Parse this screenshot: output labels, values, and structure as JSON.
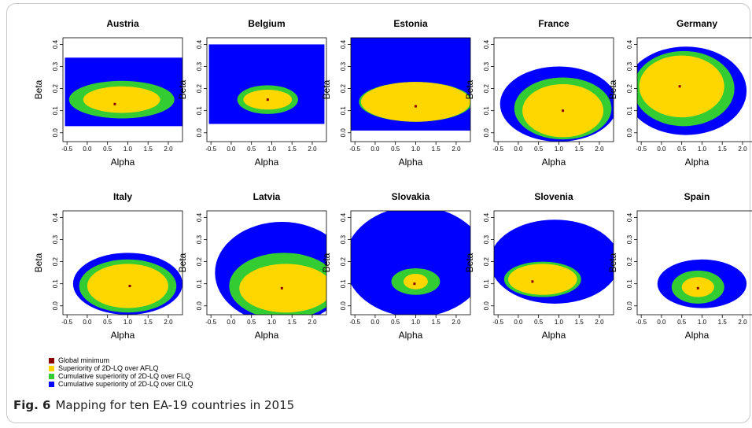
{
  "colors": {
    "global_minimum": "#8B0000",
    "afl": "#FFD700",
    "flq": "#33CC33",
    "cilq": "#0000FF"
  },
  "caption": {
    "fig_label": "Fig. 6",
    "text": "Mapping for ten EA-19 countries in 2015"
  },
  "legend": [
    {
      "label": "Global minimum",
      "color": "#8B0000"
    },
    {
      "label": "Superiority of 2D-LQ over AFLQ",
      "color": "#FFD700"
    },
    {
      "label": "Cumulative superiority of 2D-LQ over FLQ",
      "color": "#33CC33"
    },
    {
      "label": "Cumulative superiority of 2D-LQ over CILQ",
      "color": "#0000FF"
    }
  ],
  "chart_data": [
    {
      "type": "heatmap",
      "title": "Austria",
      "xlabel": "Alpha",
      "ylabel": "Beta",
      "xlim": [
        -0.6,
        2.35
      ],
      "ylim": [
        -0.04,
        0.43
      ],
      "x_ticks": [
        "-0.5",
        "0.0",
        "0.5",
        "1.0",
        "1.5",
        "2.0"
      ],
      "y_ticks": [
        "0.0",
        "0.1",
        "0.2",
        "0.3",
        "0.4"
      ],
      "global_minimum": {
        "alpha": 0.68,
        "beta": 0.13
      },
      "regions": {
        "cilq": {
          "alpha": [
            -0.55,
            2.35
          ],
          "beta": [
            0.03,
            0.34
          ]
        },
        "flq": {
          "center": [
            0.85,
            0.15
          ],
          "alpha_radius": 1.3,
          "beta_radius": 0.085
        },
        "afl": {
          "center": [
            0.85,
            0.15
          ],
          "alpha_radius": 0.95,
          "beta_radius": 0.06
        }
      }
    },
    {
      "type": "heatmap",
      "title": "Belgium",
      "xlabel": "Alpha",
      "ylabel": "Beta",
      "xlim": [
        -0.6,
        2.35
      ],
      "ylim": [
        -0.04,
        0.43
      ],
      "x_ticks": [
        "-0.5",
        "0.0",
        "0.5",
        "1.0",
        "1.5",
        "2.0"
      ],
      "y_ticks": [
        "0.0",
        "0.1",
        "0.2",
        "0.3",
        "0.4"
      ],
      "global_minimum": {
        "alpha": 0.9,
        "beta": 0.15
      },
      "regions": {
        "cilq": {
          "alpha": [
            -0.55,
            2.3
          ],
          "beta": [
            0.04,
            0.4
          ]
        },
        "flq": {
          "center": [
            0.9,
            0.15
          ],
          "alpha_radius": 0.75,
          "beta_radius": 0.065
        },
        "afl": {
          "center": [
            0.9,
            0.15
          ],
          "alpha_radius": 0.6,
          "beta_radius": 0.045
        }
      }
    },
    {
      "type": "heatmap",
      "title": "Estonia",
      "xlabel": "Alpha",
      "ylabel": "Beta",
      "xlim": [
        -0.6,
        2.35
      ],
      "ylim": [
        -0.04,
        0.43
      ],
      "x_ticks": [
        "-0.5",
        "0.0",
        "0.5",
        "1.0",
        "1.5",
        "2.0"
      ],
      "y_ticks": [
        "0.0",
        "0.1",
        "0.2",
        "0.3",
        "0.4"
      ],
      "global_minimum": {
        "alpha": 1.0,
        "beta": 0.12
      },
      "regions": {
        "cilq": {
          "alpha": [
            -0.6,
            2.35
          ],
          "beta": [
            0.01,
            0.43
          ]
        },
        "flq": {
          "center": [
            1.0,
            0.14
          ],
          "alpha_radius": 1.4,
          "beta_radius": 0.09
        },
        "afl": {
          "center": [
            1.0,
            0.14
          ],
          "alpha_radius": 1.35,
          "beta_radius": 0.09
        }
      }
    },
    {
      "type": "heatmap",
      "title": "France",
      "xlabel": "Alpha",
      "ylabel": "Beta",
      "xlim": [
        -0.6,
        2.35
      ],
      "ylim": [
        -0.04,
        0.43
      ],
      "x_ticks": [
        "-0.5",
        "0.0",
        "0.5",
        "1.0",
        "1.5",
        "2.0"
      ],
      "y_ticks": [
        "0.0",
        "0.1",
        "0.2",
        "0.3",
        "0.4"
      ],
      "global_minimum": {
        "alpha": 1.1,
        "beta": 0.1
      },
      "regions": {
        "cilq": {
          "center": [
            1.0,
            0.13
          ],
          "alpha_radius": 1.45,
          "beta_radius": 0.17
        },
        "flq": {
          "center": [
            1.1,
            0.11
          ],
          "alpha_radius": 1.2,
          "beta_radius": 0.14
        },
        "afl": {
          "center": [
            1.1,
            0.1
          ],
          "alpha_radius": 1.0,
          "beta_radius": 0.12
        }
      }
    },
    {
      "type": "heatmap",
      "title": "Germany",
      "xlabel": "Alpha",
      "ylabel": "Beta",
      "xlim": [
        -0.6,
        2.35
      ],
      "ylim": [
        -0.04,
        0.43
      ],
      "x_ticks": [
        "-0.5",
        "0.0",
        "0.5",
        "1.0",
        "1.5",
        "2.0"
      ],
      "y_ticks": [
        "0.0",
        "0.1",
        "0.2",
        "0.3",
        "0.4"
      ],
      "global_minimum": {
        "alpha": 0.45,
        "beta": 0.21
      },
      "regions": {
        "cilq": {
          "center": [
            0.6,
            0.19
          ],
          "alpha_radius": 1.5,
          "beta_radius": 0.2
        },
        "flq": {
          "center": [
            0.55,
            0.2
          ],
          "alpha_radius": 1.25,
          "beta_radius": 0.17
        },
        "afl": {
          "center": [
            0.5,
            0.21
          ],
          "alpha_radius": 1.05,
          "beta_radius": 0.14
        }
      }
    },
    {
      "type": "heatmap",
      "title": "Italy",
      "xlabel": "Alpha",
      "ylabel": "Beta",
      "xlim": [
        -0.6,
        2.35
      ],
      "ylim": [
        -0.04,
        0.43
      ],
      "x_ticks": [
        "-0.5",
        "0.0",
        "0.5",
        "1.0",
        "1.5",
        "2.0"
      ],
      "y_ticks": [
        "0.0",
        "0.1",
        "0.2",
        "0.3",
        "0.4"
      ],
      "global_minimum": {
        "alpha": 1.05,
        "beta": 0.09
      },
      "regions": {
        "cilq": {
          "center": [
            1.0,
            0.1
          ],
          "alpha_radius": 1.35,
          "beta_radius": 0.14
        },
        "flq": {
          "center": [
            1.0,
            0.09
          ],
          "alpha_radius": 1.2,
          "beta_radius": 0.12
        },
        "afl": {
          "center": [
            1.0,
            0.09
          ],
          "alpha_radius": 1.0,
          "beta_radius": 0.1
        }
      }
    },
    {
      "type": "heatmap",
      "title": "Latvia",
      "xlabel": "Alpha",
      "ylabel": "Beta",
      "xlim": [
        -0.6,
        2.35
      ],
      "ylim": [
        -0.04,
        0.43
      ],
      "x_ticks": [
        "-0.5",
        "0.0",
        "0.5",
        "1.0",
        "1.5",
        "2.0"
      ],
      "y_ticks": [
        "0.0",
        "0.1",
        "0.2",
        "0.3",
        "0.4"
      ],
      "global_minimum": {
        "alpha": 1.25,
        "beta": 0.08
      },
      "regions": {
        "cilq": {
          "center": [
            1.25,
            0.15
          ],
          "alpha_radius": 1.65,
          "beta_radius": 0.23
        },
        "flq": {
          "center": [
            1.3,
            0.09
          ],
          "alpha_radius": 1.35,
          "beta_radius": 0.15
        },
        "afl": {
          "center": [
            1.35,
            0.08
          ],
          "alpha_radius": 1.15,
          "beta_radius": 0.11
        }
      }
    },
    {
      "type": "heatmap",
      "title": "Slovakia",
      "xlabel": "Alpha",
      "ylabel": "Beta",
      "xlim": [
        -0.6,
        2.35
      ],
      "ylim": [
        -0.04,
        0.43
      ],
      "x_ticks": [
        "-0.5",
        "0.0",
        "0.5",
        "1.0",
        "1.5",
        "2.0"
      ],
      "y_ticks": [
        "0.0",
        "0.1",
        "0.2",
        "0.3",
        "0.4"
      ],
      "global_minimum": {
        "alpha": 0.97,
        "beta": 0.1
      },
      "regions": {
        "cilq": {
          "center": [
            1.0,
            0.2
          ],
          "alpha_radius": 1.75,
          "beta_radius": 0.25
        },
        "flq": {
          "center": [
            1.0,
            0.11
          ],
          "alpha_radius": 0.6,
          "beta_radius": 0.06
        },
        "afl": {
          "center": [
            1.0,
            0.11
          ],
          "alpha_radius": 0.3,
          "beta_radius": 0.035
        }
      }
    },
    {
      "type": "heatmap",
      "title": "Slovenia",
      "xlabel": "Alpha",
      "ylabel": "Beta",
      "xlim": [
        -0.6,
        2.35
      ],
      "ylim": [
        -0.04,
        0.43
      ],
      "x_ticks": [
        "-0.5",
        "0.0",
        "0.5",
        "1.0",
        "1.5",
        "2.0"
      ],
      "y_ticks": [
        "0.0",
        "0.1",
        "0.2",
        "0.3",
        "0.4"
      ],
      "global_minimum": {
        "alpha": 0.35,
        "beta": 0.11
      },
      "regions": {
        "cilq": {
          "center": [
            0.9,
            0.2
          ],
          "alpha_radius": 1.6,
          "beta_radius": 0.19
        },
        "flq": {
          "center": [
            0.6,
            0.12
          ],
          "alpha_radius": 0.95,
          "beta_radius": 0.08
        },
        "afl": {
          "center": [
            0.6,
            0.12
          ],
          "alpha_radius": 0.85,
          "beta_radius": 0.07
        }
      }
    },
    {
      "type": "heatmap",
      "title": "Spain",
      "xlabel": "Alpha",
      "ylabel": "Beta",
      "xlim": [
        -0.6,
        2.35
      ],
      "ylim": [
        -0.04,
        0.43
      ],
      "x_ticks": [
        "-0.5",
        "0.0",
        "0.5",
        "1.0",
        "1.5",
        "2.0"
      ],
      "y_ticks": [
        "0.0",
        "0.1",
        "0.2",
        "0.3",
        "0.4"
      ],
      "global_minimum": {
        "alpha": 0.9,
        "beta": 0.08
      },
      "regions": {
        "cilq": {
          "center": [
            1.0,
            0.1
          ],
          "alpha_radius": 1.1,
          "beta_radius": 0.11
        },
        "flq": {
          "center": [
            0.9,
            0.085
          ],
          "alpha_radius": 0.65,
          "beta_radius": 0.075
        },
        "afl": {
          "center": [
            0.9,
            0.085
          ],
          "alpha_radius": 0.4,
          "beta_radius": 0.045
        }
      }
    }
  ]
}
